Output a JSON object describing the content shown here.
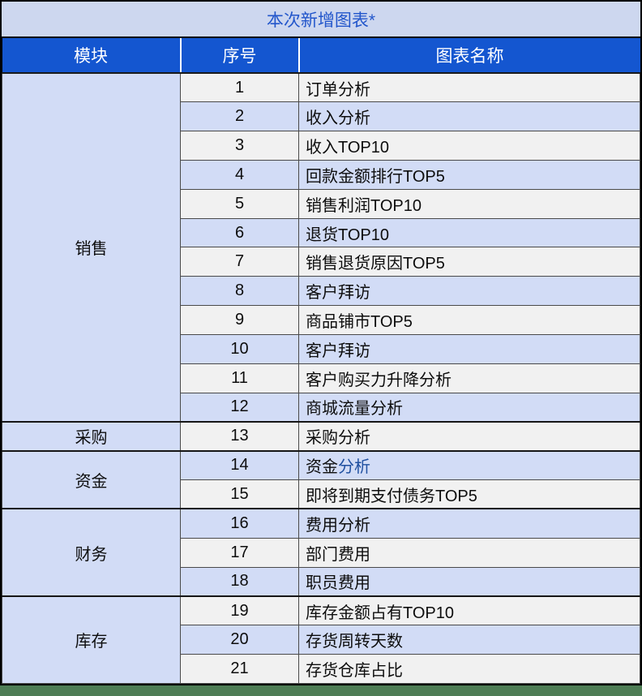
{
  "title": "本次新增图表*",
  "columns": {
    "module": "模块",
    "index": "序号",
    "name": "图表名称"
  },
  "modules": [
    {
      "label": "销售",
      "rowspan": 12
    },
    {
      "label": "采购",
      "rowspan": 1
    },
    {
      "label": "资金",
      "rowspan": 2
    },
    {
      "label": "财务",
      "rowspan": 3
    },
    {
      "label": "库存",
      "rowspan": 3
    }
  ],
  "rows": [
    {
      "num": "1",
      "name": "订单分析"
    },
    {
      "num": "2",
      "name": "收入分析"
    },
    {
      "num": "3",
      "name": "收入TOP10"
    },
    {
      "num": "4",
      "name": "回款金额排行TOP5"
    },
    {
      "num": "5",
      "name": "销售利润TOP10"
    },
    {
      "num": "6",
      "name": "退货TOP10"
    },
    {
      "num": "7",
      "name": "销售退货原因TOP5"
    },
    {
      "num": "8",
      "name": "客户拜访"
    },
    {
      "num": "9",
      "name": "商品铺市TOP5"
    },
    {
      "num": "10",
      "name": "客户拜访"
    },
    {
      "num": "11",
      "name": "客户购买力升降分析"
    },
    {
      "num": "12",
      "name": "商城流量分析"
    },
    {
      "num": "13",
      "name": "采购分析"
    },
    {
      "num": "14",
      "name": "资金分析",
      "name_parts": {
        "black": "资金",
        "blue": "分析"
      }
    },
    {
      "num": "15",
      "name": "即将到期支付债务TOP5"
    },
    {
      "num": "16",
      "name": "费用分析"
    },
    {
      "num": "17",
      "name": "部门费用"
    },
    {
      "num": "18",
      "name": "职员费用"
    },
    {
      "num": "19",
      "name": "库存金额占有TOP10"
    },
    {
      "num": "20",
      "name": "存货周转天数"
    },
    {
      "num": "21",
      "name": "存货仓库占比"
    }
  ],
  "colors": {
    "header_bg": "#1456d0",
    "header_text": "#ffffff",
    "title_bg": "#cdd7ef",
    "title_text": "#2256cb",
    "row_light_bg": "#f1f1f1",
    "row_blue_bg": "#d2dcf6",
    "module_bg": "#d2dcf6",
    "partial_blue_text": "#1f4fa0",
    "footer_bar": "#4e7d55"
  }
}
